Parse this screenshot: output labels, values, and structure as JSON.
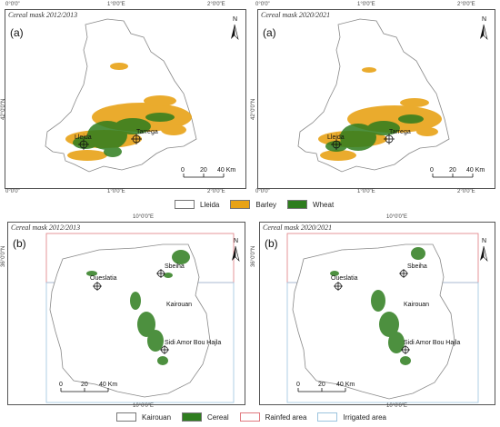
{
  "top_row": {
    "panels": [
      {
        "title": "Cereal mask 2012/2013",
        "label": "(a)"
      },
      {
        "title": "Cereal mask 2020/2021",
        "label": "(a)"
      }
    ],
    "x_ticks": [
      "0°0'0\"",
      "1°0'0\"E",
      "2°0'0\"E"
    ],
    "y_tick": "42°0'0\"N",
    "north": "N",
    "cities": [
      {
        "name": "Lleida"
      },
      {
        "name": "Tarrega"
      }
    ],
    "scale": {
      "labels": [
        "0",
        "20",
        "40 Km"
      ]
    },
    "legend": [
      {
        "label": "Lleida",
        "color": "#ffffff"
      },
      {
        "label": "Barley",
        "color": "#e8a317"
      },
      {
        "label": "Wheat",
        "color": "#2e7d1e"
      }
    ]
  },
  "bottom_row": {
    "panels": [
      {
        "title": "Cereal mask 2012/2013",
        "label": "(b)"
      },
      {
        "title": "Cereal mask 2020/2021",
        "label": "(b)"
      }
    ],
    "x_tick": "10°0'0\"E",
    "y_tick": "36°0'0\"N",
    "north": "N",
    "cities": [
      {
        "name": "Sbeiha"
      },
      {
        "name": "Oueslatia"
      },
      {
        "name": "Kairouan"
      },
      {
        "name": "Sidi Amor Bou Hajla"
      }
    ],
    "scale": {
      "labels": [
        "0",
        "20",
        "40 Km"
      ]
    },
    "legend": [
      {
        "label": "Kairouan",
        "color": "#ffffff"
      },
      {
        "label": "Cereal",
        "color": "#2e7d1e"
      },
      {
        "label": "Rainfed area",
        "color": "#e07a80"
      },
      {
        "label": "Irrigated area",
        "color": "#9cc4de"
      }
    ]
  }
}
